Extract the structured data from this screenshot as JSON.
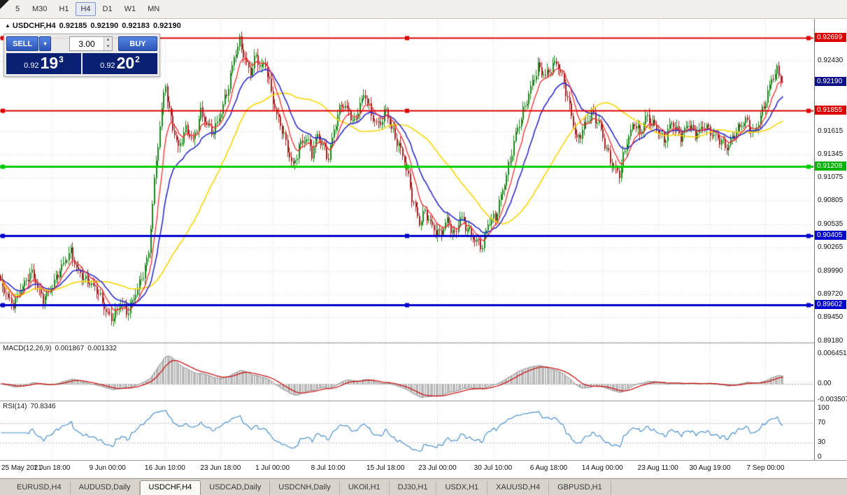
{
  "toolbar": {
    "timeframes": [
      {
        "label": "5",
        "active": false
      },
      {
        "label": "M30",
        "active": false
      },
      {
        "label": "H1",
        "active": false
      },
      {
        "label": "H4",
        "active": true
      },
      {
        "label": "D1",
        "active": false
      },
      {
        "label": "W1",
        "active": false
      },
      {
        "label": "MN",
        "active": false
      }
    ]
  },
  "icons": {
    "chevron_down": "▾",
    "chevron_up": "▴",
    "collapse_arrow": "▲"
  },
  "chart_header": {
    "symbol": "USDCHF,H4",
    "open": "0.92185",
    "high": "0.92190",
    "low": "0.92183",
    "close": "0.92190"
  },
  "trade_panel": {
    "sell_label": "SELL",
    "buy_label": "BUY",
    "volume": "3.00",
    "sell_price": {
      "prefix": "0.92",
      "big": "19",
      "sup": "3"
    },
    "buy_price": {
      "prefix": "0.92",
      "big": "20",
      "sup": "2"
    }
  },
  "price_axis": {
    "ticks": [
      {
        "text": "0.92430",
        "v": 0.9243
      },
      {
        "text": "0.91615",
        "v": 0.91615
      },
      {
        "text": "0.91345",
        "v": 0.91345
      },
      {
        "text": "0.91075",
        "v": 0.91075
      },
      {
        "text": "0.90805",
        "v": 0.90805
      },
      {
        "text": "0.90535",
        "v": 0.90535
      },
      {
        "text": "0.90265",
        "v": 0.90265
      },
      {
        "text": "0.89990",
        "v": 0.8999
      },
      {
        "text": "0.89720",
        "v": 0.8972
      },
      {
        "text": "0.89450",
        "v": 0.8945
      },
      {
        "text": "0.89180",
        "v": 0.8918
      }
    ],
    "badges": [
      {
        "text": "0.92699",
        "v": 0.92699,
        "bg": "#dd0000"
      },
      {
        "text": "0.92190",
        "v": 0.9219,
        "bg": "#10128c"
      },
      {
        "text": "0.91855",
        "v": 0.91855,
        "bg": "#dd0000"
      },
      {
        "text": "0.91208",
        "v": 0.91208,
        "bg": "#00b300"
      },
      {
        "text": "0.90405",
        "v": 0.90405,
        "bg": "#0000cc"
      },
      {
        "text": "0.89602",
        "v": 0.89602,
        "bg": "#0000cc"
      }
    ]
  },
  "macd_panel": {
    "label": "MACD(12,26,9)",
    "value1": "0.001867",
    "value2": "0.001332",
    "vmax": 0.0088,
    "vmin": -0.0035,
    "ticks": [
      {
        "text": "0.006451",
        "v": 0.006451
      },
      {
        "text": "0.00",
        "v": 0
      },
      {
        "text": "-0.003507",
        "v": -0.003507
      }
    ]
  },
  "rsi_panel": {
    "label": "RSI(14)",
    "value": "70.8346",
    "ticks": [
      {
        "text": "100",
        "v": 100
      },
      {
        "text": "70",
        "v": 70
      },
      {
        "text": "30",
        "v": 30
      },
      {
        "text": "0",
        "v": 0
      }
    ],
    "levels": [
      70,
      30
    ]
  },
  "time_axis": [
    {
      "label": "25 May 2021",
      "bar": 0
    },
    {
      "label": "1 Jun 18:00",
      "bar": 28
    },
    {
      "label": "9 Jun 00:00",
      "bar": 58
    },
    {
      "label": "16 Jun 10:00",
      "bar": 89
    },
    {
      "label": "23 Jun 18:00",
      "bar": 119
    },
    {
      "label": "1 Jul 00:00",
      "bar": 147
    },
    {
      "label": "8 Jul 10:00",
      "bar": 177
    },
    {
      "label": "15 Jul 18:00",
      "bar": 208
    },
    {
      "label": "23 Jul 00:00",
      "bar": 236
    },
    {
      "label": "30 Jul 10:00",
      "bar": 266
    },
    {
      "label": "6 Aug 18:00",
      "bar": 296
    },
    {
      "label": "14 Aug 00:00",
      "bar": 325
    },
    {
      "label": "23 Aug 11:00",
      "bar": 355
    },
    {
      "label": "30 Aug 19:00",
      "bar": 383
    },
    {
      "label": "7 Sep 00:00",
      "bar": 413
    }
  ],
  "tabs": [
    {
      "label": "EURUSD,H4",
      "active": false
    },
    {
      "label": "AUDUSD,Daily",
      "active": false
    },
    {
      "label": "USDCHF,H4",
      "active": true
    },
    {
      "label": "USDCAD,Daily",
      "active": false
    },
    {
      "label": "USDCNH,Daily",
      "active": false
    },
    {
      "label": "UKOil,H1",
      "active": false
    },
    {
      "label": "DJ30,H1",
      "active": false
    },
    {
      "label": "USDX,H1",
      "active": false
    },
    {
      "label": "XAUUSD,H4",
      "active": false
    },
    {
      "label": "GBPUSD,H1",
      "active": false
    }
  ],
  "chart_data": {
    "type": "candlestick",
    "symbol": "USDCHF",
    "timeframe": "H4",
    "title": "USDCHF,H4",
    "bar_count": 423,
    "bar_spacing": 2.65,
    "price_min": 0.8916,
    "price_max": 0.9292,
    "current_price": 0.9219,
    "grid_color": "#d6d6d6",
    "bull_color": "#178717",
    "bear_color": "#a32020",
    "levels": [
      {
        "price": 0.92699,
        "color": "#dd0000",
        "width": 2
      },
      {
        "price": 0.91855,
        "color": "#dd0000",
        "width": 2
      },
      {
        "price": 0.91208,
        "color": "#00cc00",
        "width": 3
      },
      {
        "price": 0.90405,
        "color": "#0000cc",
        "width": 3
      },
      {
        "price": 0.89602,
        "color": "#0000cc",
        "width": 3
      }
    ],
    "moving_averages": [
      {
        "period": 50,
        "type": "sma",
        "color": "#ffd400",
        "width": 1.6
      },
      {
        "period": 20,
        "type": "ema",
        "color": "#2a2ad0",
        "width": 1.6
      },
      {
        "period": 8,
        "type": "ema",
        "color": "#ff2a2a",
        "width": 1.3
      }
    ],
    "macd": {
      "fast": 12,
      "slow": 26,
      "signal": 9,
      "hist_color": "#b9b9b9",
      "outline_color": "#8f8f8f",
      "signal_color": "#cc1111"
    },
    "rsi": {
      "period": 14,
      "color": "#4a90d2",
      "level_color": "#c0c0dd"
    },
    "close_anchors": [
      [
        0,
        0.8985
      ],
      [
        4,
        0.8968
      ],
      [
        7,
        0.896
      ],
      [
        11,
        0.8978
      ],
      [
        15,
        0.8992
      ],
      [
        17,
        0.8998
      ],
      [
        20,
        0.898
      ],
      [
        23,
        0.8966
      ],
      [
        26,
        0.8975
      ],
      [
        28,
        0.8982
      ],
      [
        31,
        0.8996
      ],
      [
        34,
        0.9008
      ],
      [
        38,
        0.9022
      ],
      [
        41,
        0.9002
      ],
      [
        45,
        0.899
      ],
      [
        49,
        0.8984
      ],
      [
        53,
        0.8974
      ],
      [
        57,
        0.8952
      ],
      [
        60,
        0.8944
      ],
      [
        63,
        0.8954
      ],
      [
        65,
        0.8962
      ],
      [
        68,
        0.895
      ],
      [
        72,
        0.8968
      ],
      [
        75,
        0.8984
      ],
      [
        77,
        0.8996
      ],
      [
        80,
        0.902
      ],
      [
        82,
        0.908
      ],
      [
        85,
        0.9148
      ],
      [
        88,
        0.9205
      ],
      [
        89,
        0.9215
      ],
      [
        91,
        0.9185
      ],
      [
        94,
        0.9158
      ],
      [
        96,
        0.9142
      ],
      [
        100,
        0.9164
      ],
      [
        104,
        0.915
      ],
      [
        108,
        0.9184
      ],
      [
        111,
        0.917
      ],
      [
        115,
        0.916
      ],
      [
        119,
        0.9184
      ],
      [
        123,
        0.9214
      ],
      [
        126,
        0.9248
      ],
      [
        129,
        0.9266
      ],
      [
        132,
        0.9244
      ],
      [
        135,
        0.923
      ],
      [
        138,
        0.925
      ],
      [
        140,
        0.9236
      ],
      [
        143,
        0.924
      ],
      [
        146,
        0.9206
      ],
      [
        149,
        0.918
      ],
      [
        152,
        0.9164
      ],
      [
        155,
        0.914
      ],
      [
        158,
        0.912
      ],
      [
        161,
        0.9144
      ],
      [
        165,
        0.9154
      ],
      [
        168,
        0.9136
      ],
      [
        171,
        0.9158
      ],
      [
        174,
        0.9144
      ],
      [
        177,
        0.913
      ],
      [
        180,
        0.9164
      ],
      [
        184,
        0.9194
      ],
      [
        188,
        0.9184
      ],
      [
        191,
        0.917
      ],
      [
        194,
        0.9194
      ],
      [
        197,
        0.9204
      ],
      [
        200,
        0.918
      ],
      [
        204,
        0.9168
      ],
      [
        208,
        0.9186
      ],
      [
        211,
        0.9164
      ],
      [
        214,
        0.915
      ],
      [
        218,
        0.9128
      ],
      [
        222,
        0.9085
      ],
      [
        226,
        0.9055
      ],
      [
        229,
        0.9068
      ],
      [
        233,
        0.905
      ],
      [
        237,
        0.9042
      ],
      [
        241,
        0.9058
      ],
      [
        245,
        0.904
      ],
      [
        248,
        0.9062
      ],
      [
        252,
        0.9048
      ],
      [
        256,
        0.9035
      ],
      [
        260,
        0.9028
      ],
      [
        263,
        0.9055
      ],
      [
        267,
        0.9062
      ],
      [
        271,
        0.9094
      ],
      [
        275,
        0.9128
      ],
      [
        278,
        0.9158
      ],
      [
        282,
        0.9184
      ],
      [
        286,
        0.9212
      ],
      [
        290,
        0.9236
      ],
      [
        294,
        0.9226
      ],
      [
        297,
        0.9234
      ],
      [
        300,
        0.9242
      ],
      [
        304,
        0.9218
      ],
      [
        308,
        0.918
      ],
      [
        311,
        0.915
      ],
      [
        315,
        0.9168
      ],
      [
        319,
        0.9182
      ],
      [
        323,
        0.917
      ],
      [
        326,
        0.9146
      ],
      [
        330,
        0.9122
      ],
      [
        334,
        0.9112
      ],
      [
        338,
        0.915
      ],
      [
        342,
        0.9172
      ],
      [
        345,
        0.9158
      ],
      [
        348,
        0.9178
      ],
      [
        352,
        0.917
      ],
      [
        355,
        0.9162
      ],
      [
        358,
        0.915
      ],
      [
        362,
        0.9172
      ],
      [
        367,
        0.9155
      ],
      [
        371,
        0.917
      ],
      [
        375,
        0.9158
      ],
      [
        380,
        0.9168
      ],
      [
        384,
        0.9158
      ],
      [
        389,
        0.915
      ],
      [
        392,
        0.9142
      ],
      [
        397,
        0.9162
      ],
      [
        402,
        0.9175
      ],
      [
        406,
        0.9158
      ],
      [
        409,
        0.9172
      ],
      [
        413,
        0.9198
      ],
      [
        416,
        0.9222
      ],
      [
        419,
        0.9232
      ],
      [
        422,
        0.9219
      ]
    ]
  }
}
